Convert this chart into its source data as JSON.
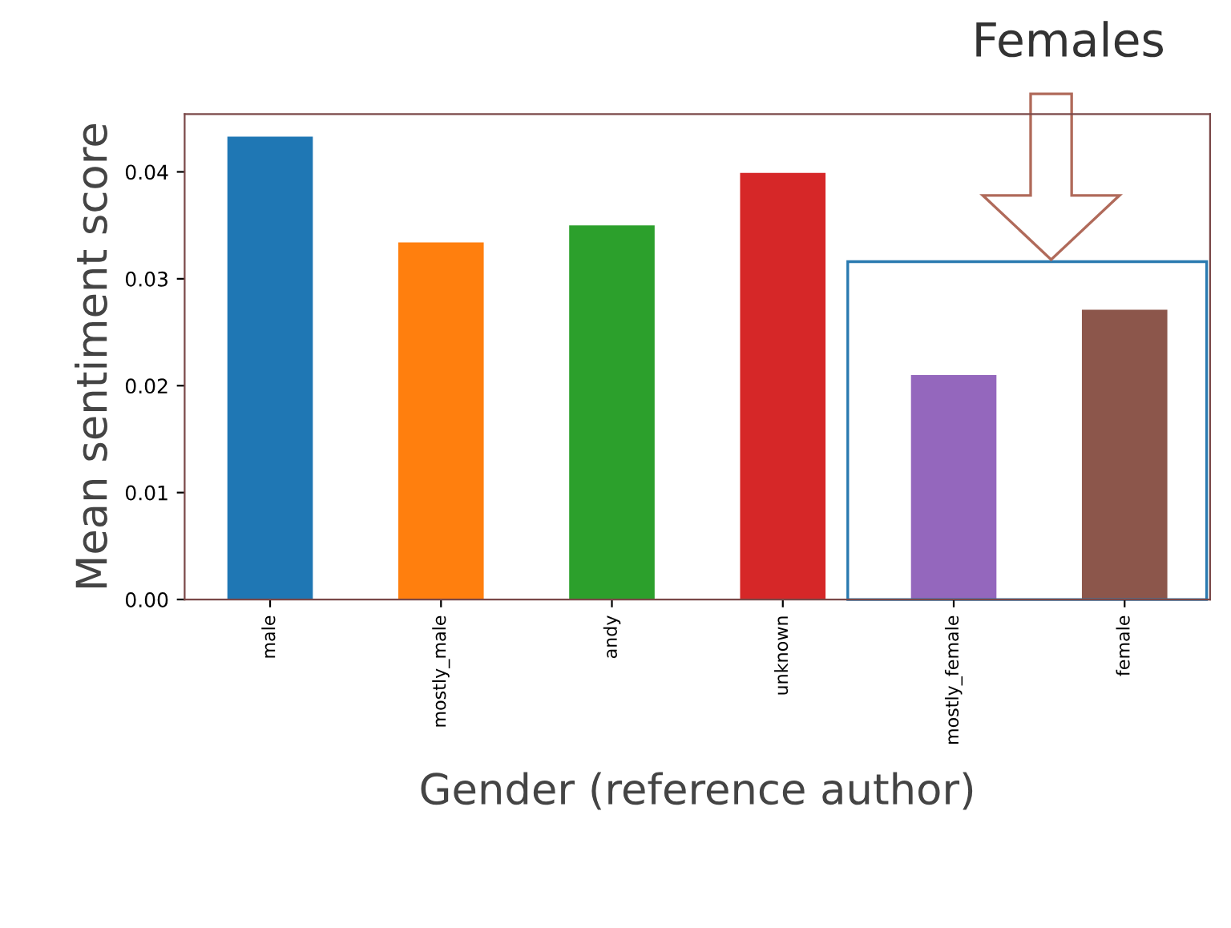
{
  "chart_data": {
    "type": "bar",
    "xlabel": "Gender (reference author)",
    "ylabel": "Mean sentiment score",
    "categories": [
      "male",
      "mostly_male",
      "andy",
      "unknown",
      "mostly_female",
      "female"
    ],
    "values": [
      0.0433,
      0.0334,
      0.035,
      0.0399,
      0.021,
      0.0271
    ],
    "colors": [
      "#1f77b4",
      "#ff7f0e",
      "#2ca02c",
      "#d62728",
      "#9467bd",
      "#8c564b"
    ],
    "ylim": [
      0,
      0.0454
    ],
    "yticks": [
      {
        "value": 0,
        "label": "0.00"
      },
      {
        "value": 0.01,
        "label": "0.01"
      },
      {
        "value": 0.02,
        "label": "0.02"
      },
      {
        "value": 0.03,
        "label": "0.03"
      },
      {
        "value": 0.04,
        "label": "0.04"
      }
    ],
    "annotations": [
      "Females"
    ],
    "grid": false,
    "legend": false
  }
}
